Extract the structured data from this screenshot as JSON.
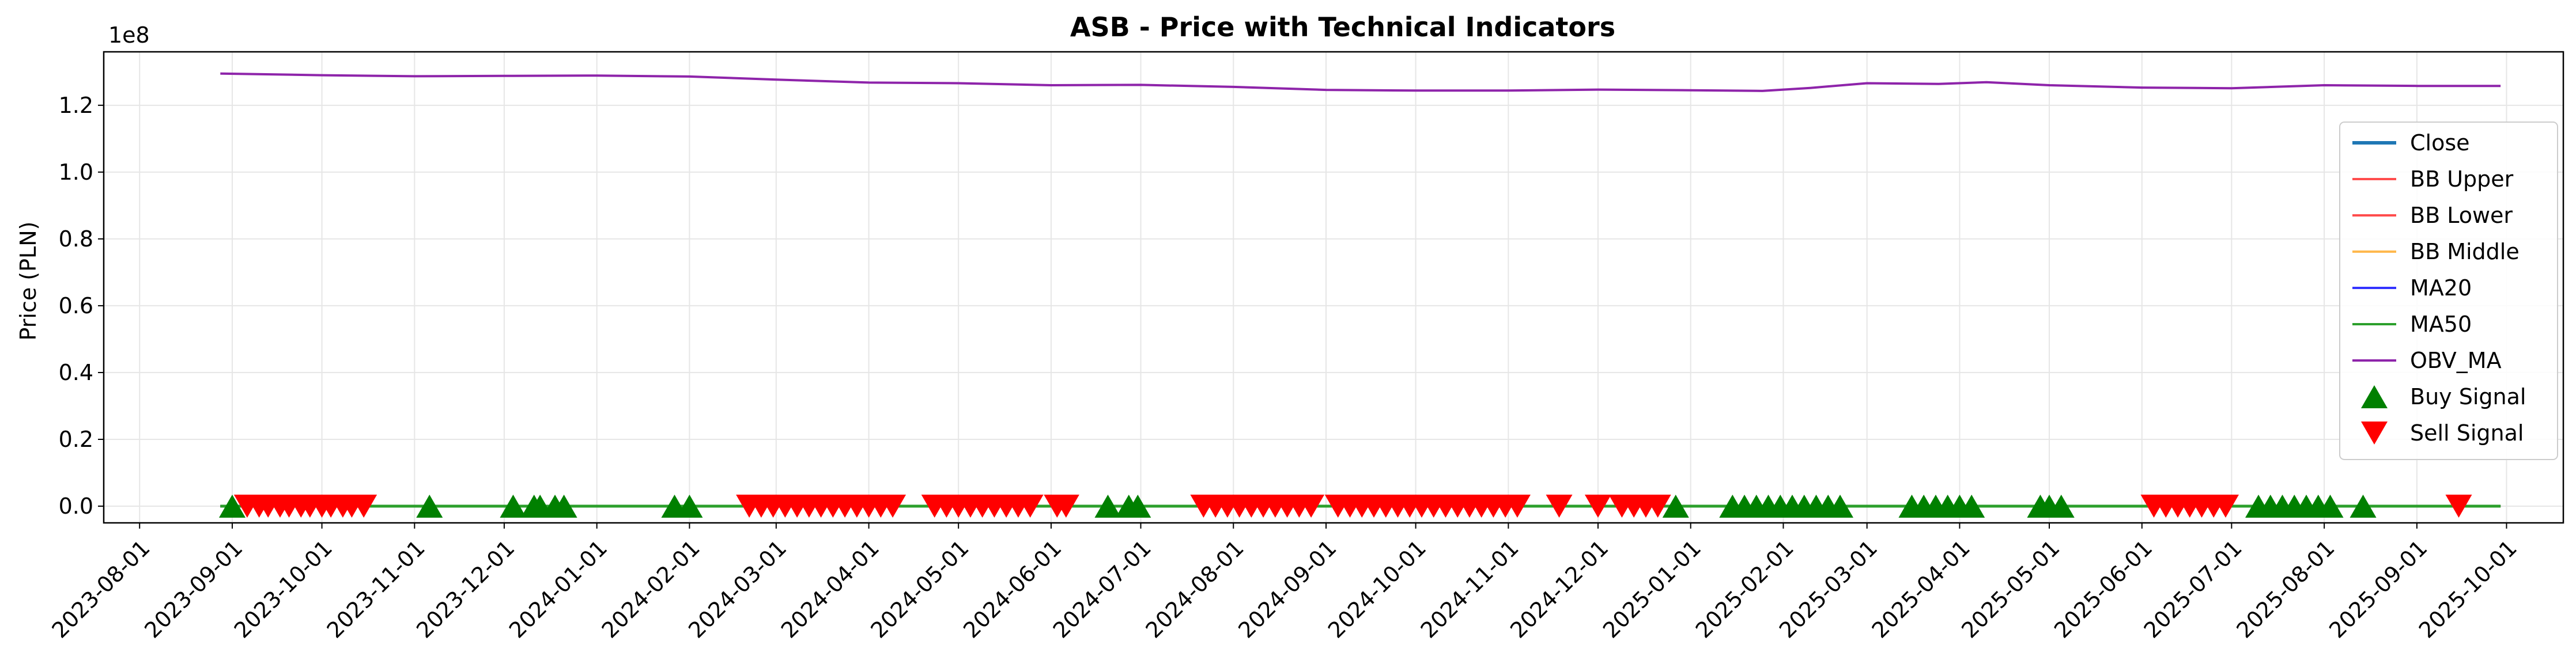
{
  "chart_data": {
    "type": "line",
    "title": "ASB - Price with Technical Indicators",
    "ylabel": "Price (PLN)",
    "xlabel": "",
    "y_offset_text": "1e8",
    "ylim": [
      -5000000,
      136000000
    ],
    "xlim": [
      "2023-07-20",
      "2025-10-20"
    ],
    "grid": true,
    "legend_position": "right",
    "y_ticks": [
      0,
      20000000,
      40000000,
      60000000,
      80000000,
      100000000,
      120000000
    ],
    "y_tick_labels": [
      "0.0",
      "0.2",
      "0.4",
      "0.6",
      "0.8",
      "1.0",
      "1.2"
    ],
    "x_ticks": [
      "2023-08-01",
      "2023-09-01",
      "2023-10-01",
      "2023-11-01",
      "2023-12-01",
      "2024-01-01",
      "2024-02-01",
      "2024-03-01",
      "2024-04-01",
      "2024-05-01",
      "2024-06-01",
      "2024-07-01",
      "2024-08-01",
      "2024-09-01",
      "2024-10-01",
      "2024-11-01",
      "2024-12-01",
      "2025-01-01",
      "2025-02-01",
      "2025-03-01",
      "2025-04-01",
      "2025-05-01",
      "2025-06-01",
      "2025-07-01",
      "2025-08-01",
      "2025-09-01",
      "2025-10-01"
    ],
    "legend": [
      "Close",
      "BB Upper",
      "BB Lower",
      "BB Middle",
      "MA20",
      "MA50",
      "OBV_MA",
      "Buy Signal",
      "Sell Signal"
    ],
    "colors": {
      "Close": "#1f77b4",
      "BB Upper": "#ff4d4d",
      "BB Lower": "#ff4d4d",
      "BB Middle": "#ffb84d",
      "MA20": "#3333ff",
      "MA50": "#2ca02c",
      "OBV_MA": "#8e24aa",
      "Buy Signal": "#008000",
      "Sell Signal": "#ff0000"
    },
    "series": [
      {
        "name": "OBV_MA",
        "x": [
          "2023-08-28",
          "2023-10-01",
          "2023-11-01",
          "2023-12-01",
          "2024-01-01",
          "2024-02-01",
          "2024-03-01",
          "2024-04-01",
          "2024-05-01",
          "2024-06-01",
          "2024-07-01",
          "2024-08-01",
          "2024-09-01",
          "2024-10-01",
          "2024-11-01",
          "2024-12-01",
          "2025-01-01",
          "2025-01-25",
          "2025-02-10",
          "2025-03-01",
          "2025-03-25",
          "2025-04-10",
          "2025-05-01",
          "2025-06-01",
          "2025-07-01",
          "2025-08-01",
          "2025-09-01",
          "2025-09-29"
        ],
        "values": [
          129500000,
          129000000,
          128700000,
          128800000,
          128900000,
          128600000,
          127700000,
          126800000,
          126600000,
          126000000,
          126100000,
          125500000,
          124600000,
          124400000,
          124400000,
          124700000,
          124500000,
          124300000,
          125200000,
          126600000,
          126400000,
          126900000,
          126000000,
          125300000,
          125100000,
          126000000,
          125800000,
          125800000
        ]
      },
      {
        "name": "Close",
        "x": [
          "2023-08-28",
          "2025-09-29"
        ],
        "values": [
          120,
          120
        ]
      },
      {
        "name": "BB Upper",
        "x": [
          "2023-08-28",
          "2025-09-29"
        ],
        "values": [
          130,
          130
        ]
      },
      {
        "name": "BB Lower",
        "x": [
          "2023-08-28",
          "2025-09-29"
        ],
        "values": [
          110,
          110
        ]
      },
      {
        "name": "BB Middle",
        "x": [
          "2023-08-28",
          "2025-09-29"
        ],
        "values": [
          120,
          120
        ]
      },
      {
        "name": "MA20",
        "x": [
          "2023-08-28",
          "2025-09-29"
        ],
        "values": [
          120,
          120
        ]
      },
      {
        "name": "MA50",
        "x": [
          "2023-08-28",
          "2025-09-29"
        ],
        "values": [
          120,
          120
        ]
      }
    ],
    "buy_signals": [
      "2023-09-01",
      "2023-11-06",
      "2023-12-04",
      "2023-12-11",
      "2023-12-13",
      "2023-12-18",
      "2023-12-21",
      "2024-01-27",
      "2024-02-01",
      "2024-06-20",
      "2024-06-27",
      "2024-06-30",
      "2024-12-27",
      "2025-01-15",
      "2025-01-19",
      "2025-01-23",
      "2025-01-27",
      "2025-01-31",
      "2025-02-04",
      "2025-02-08",
      "2025-02-12",
      "2025-02-16",
      "2025-02-20",
      "2025-03-16",
      "2025-03-20",
      "2025-03-24",
      "2025-03-28",
      "2025-04-01",
      "2025-04-05",
      "2025-04-28",
      "2025-05-01",
      "2025-05-05",
      "2025-07-10",
      "2025-07-14",
      "2025-07-18",
      "2025-07-22",
      "2025-07-26",
      "2025-07-30",
      "2025-08-03",
      "2025-08-14"
    ],
    "sell_signals": [
      "2023-09-06",
      "2023-09-10",
      "2023-09-13",
      "2023-09-17",
      "2023-09-20",
      "2023-09-24",
      "2023-09-27",
      "2023-10-01",
      "2023-10-04",
      "2023-10-08",
      "2023-10-11",
      "2023-10-15",
      "2024-02-21",
      "2024-02-25",
      "2024-02-29",
      "2024-03-04",
      "2024-03-08",
      "2024-03-12",
      "2024-03-16",
      "2024-03-20",
      "2024-03-24",
      "2024-03-28",
      "2024-04-01",
      "2024-04-05",
      "2024-04-09",
      "2024-04-23",
      "2024-04-27",
      "2024-05-01",
      "2024-05-05",
      "2024-05-09",
      "2024-05-13",
      "2024-05-17",
      "2024-05-21",
      "2024-05-25",
      "2024-06-03",
      "2024-06-06",
      "2024-07-22",
      "2024-07-26",
      "2024-07-30",
      "2024-08-03",
      "2024-08-07",
      "2024-08-11",
      "2024-08-15",
      "2024-08-19",
      "2024-08-23",
      "2024-08-27",
      "2024-09-05",
      "2024-09-09",
      "2024-09-13",
      "2024-09-17",
      "2024-09-21",
      "2024-09-25",
      "2024-09-29",
      "2024-10-03",
      "2024-10-07",
      "2024-10-11",
      "2024-10-15",
      "2024-10-19",
      "2024-10-23",
      "2024-10-27",
      "2024-10-31",
      "2024-11-04",
      "2024-11-18",
      "2024-12-01",
      "2024-12-09",
      "2024-12-13",
      "2024-12-17",
      "2024-12-21",
      "2025-06-05",
      "2025-06-09",
      "2025-06-13",
      "2025-06-17",
      "2025-06-21",
      "2025-06-25",
      "2025-06-29",
      "2025-09-15"
    ]
  }
}
